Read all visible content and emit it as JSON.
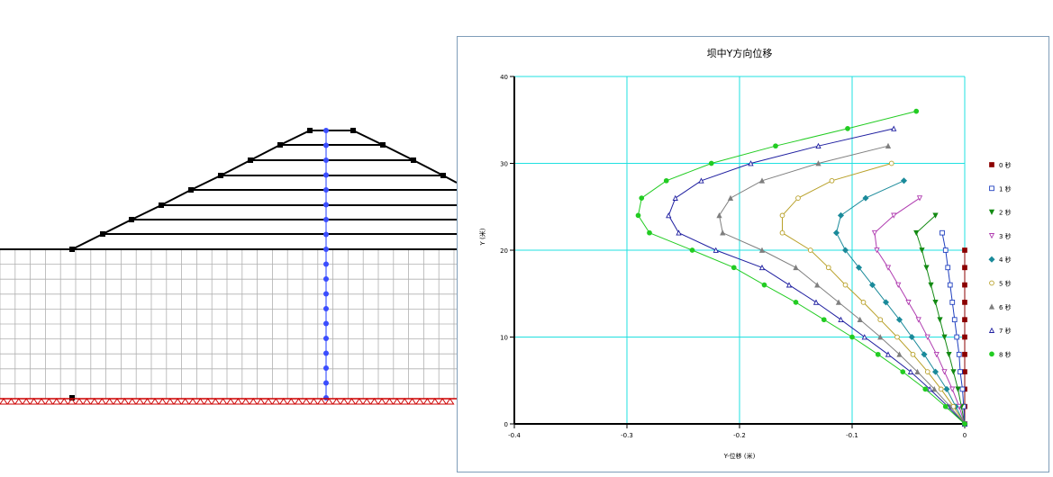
{
  "chart_data": {
    "type": "line",
    "title": "坝中Y方向位移",
    "xlabel": "Y-位移 (米)",
    "ylabel": "Y (米)",
    "xlim": [
      -0.4,
      0
    ],
    "ylim": [
      0,
      40
    ],
    "xticks": [
      -0.4,
      -0.3,
      -0.2,
      -0.1,
      0
    ],
    "xtick_labels": [
      "-0.4",
      "-0.3",
      "-0.2",
      "-0.1",
      "0"
    ],
    "yticks": [
      0,
      10,
      20,
      30,
      40
    ],
    "ytick_labels": [
      "0",
      "10",
      "20",
      "30",
      "40"
    ],
    "grid": true,
    "legend_position": "right",
    "series": [
      {
        "name": "0 秒",
        "color": "#8b0000",
        "marker": "square-filled",
        "points": [
          [
            0,
            0
          ],
          [
            0,
            2
          ],
          [
            0,
            4
          ],
          [
            0,
            6
          ],
          [
            0,
            8
          ],
          [
            0,
            10
          ],
          [
            0,
            12
          ],
          [
            0,
            14
          ],
          [
            0,
            16
          ],
          [
            0,
            18
          ],
          [
            0,
            20
          ]
        ]
      },
      {
        "name": "1 秒",
        "color": "#1f3fbf",
        "marker": "square-open",
        "points": [
          [
            0,
            0
          ],
          [
            -0.001,
            2
          ],
          [
            -0.002,
            4
          ],
          [
            -0.004,
            6
          ],
          [
            -0.005,
            8
          ],
          [
            -0.007,
            10
          ],
          [
            -0.009,
            12
          ],
          [
            -0.011,
            14
          ],
          [
            -0.013,
            16
          ],
          [
            -0.015,
            18
          ],
          [
            -0.017,
            20
          ],
          [
            -0.02,
            22
          ]
        ]
      },
      {
        "name": "2 秒",
        "color": "#138a13",
        "marker": "triangle-down-filled",
        "points": [
          [
            0,
            0
          ],
          [
            -0.003,
            2
          ],
          [
            -0.006,
            4
          ],
          [
            -0.01,
            6
          ],
          [
            -0.014,
            8
          ],
          [
            -0.018,
            10
          ],
          [
            -0.022,
            12
          ],
          [
            -0.026,
            14
          ],
          [
            -0.03,
            16
          ],
          [
            -0.034,
            18
          ],
          [
            -0.038,
            20
          ],
          [
            -0.043,
            22
          ],
          [
            -0.026,
            24
          ]
        ]
      },
      {
        "name": "3 秒",
        "color": "#b03cb0",
        "marker": "triangle-down-open",
        "points": [
          [
            0,
            0
          ],
          [
            -0.005,
            2
          ],
          [
            -0.011,
            4
          ],
          [
            -0.018,
            6
          ],
          [
            -0.025,
            8
          ],
          [
            -0.033,
            10
          ],
          [
            -0.041,
            12
          ],
          [
            -0.05,
            14
          ],
          [
            -0.059,
            16
          ],
          [
            -0.068,
            18
          ],
          [
            -0.078,
            20
          ],
          [
            -0.08,
            22
          ],
          [
            -0.063,
            24
          ],
          [
            -0.04,
            26
          ]
        ]
      },
      {
        "name": "4 秒",
        "color": "#1a8a9a",
        "marker": "diamond-filled",
        "points": [
          [
            0,
            0
          ],
          [
            -0.008,
            2
          ],
          [
            -0.016,
            4
          ],
          [
            -0.026,
            6
          ],
          [
            -0.036,
            8
          ],
          [
            -0.047,
            10
          ],
          [
            -0.058,
            12
          ],
          [
            -0.07,
            14
          ],
          [
            -0.082,
            16
          ],
          [
            -0.094,
            18
          ],
          [
            -0.106,
            20
          ],
          [
            -0.114,
            22
          ],
          [
            -0.11,
            24
          ],
          [
            -0.088,
            26
          ],
          [
            -0.054,
            28
          ]
        ]
      },
      {
        "name": "5 秒",
        "color": "#b8a028",
        "marker": "circle-open",
        "points": [
          [
            0,
            0
          ],
          [
            -0.01,
            2
          ],
          [
            -0.021,
            4
          ],
          [
            -0.033,
            6
          ],
          [
            -0.046,
            8
          ],
          [
            -0.06,
            10
          ],
          [
            -0.075,
            12
          ],
          [
            -0.09,
            14
          ],
          [
            -0.106,
            16
          ],
          [
            -0.121,
            18
          ],
          [
            -0.137,
            20
          ],
          [
            -0.162,
            22
          ],
          [
            -0.162,
            24
          ],
          [
            -0.148,
            26
          ],
          [
            -0.118,
            28
          ],
          [
            -0.065,
            30
          ]
        ]
      },
      {
        "name": "6 秒",
        "color": "#7f7f7f",
        "marker": "triangle-up-filled",
        "points": [
          [
            0,
            0
          ],
          [
            -0.013,
            2
          ],
          [
            -0.027,
            4
          ],
          [
            -0.042,
            6
          ],
          [
            -0.058,
            8
          ],
          [
            -0.075,
            10
          ],
          [
            -0.093,
            12
          ],
          [
            -0.112,
            14
          ],
          [
            -0.131,
            16
          ],
          [
            -0.15,
            18
          ],
          [
            -0.18,
            20
          ],
          [
            -0.215,
            22
          ],
          [
            -0.218,
            24
          ],
          [
            -0.208,
            26
          ],
          [
            -0.18,
            28
          ],
          [
            -0.13,
            30
          ],
          [
            -0.068,
            32
          ]
        ]
      },
      {
        "name": "7 秒",
        "color": "#1f1fa0",
        "marker": "triangle-up-open",
        "points": [
          [
            0,
            0
          ],
          [
            -0.015,
            2
          ],
          [
            -0.031,
            4
          ],
          [
            -0.048,
            6
          ],
          [
            -0.068,
            8
          ],
          [
            -0.089,
            10
          ],
          [
            -0.11,
            12
          ],
          [
            -0.132,
            14
          ],
          [
            -0.156,
            16
          ],
          [
            -0.18,
            18
          ],
          [
            -0.221,
            20
          ],
          [
            -0.254,
            22
          ],
          [
            -0.263,
            24
          ],
          [
            -0.257,
            26
          ],
          [
            -0.234,
            28
          ],
          [
            -0.19,
            30
          ],
          [
            -0.13,
            32
          ],
          [
            -0.063,
            34
          ]
        ]
      },
      {
        "name": "8 秒",
        "color": "#22cc22",
        "marker": "circle-filled",
        "points": [
          [
            0,
            0
          ],
          [
            -0.017,
            2
          ],
          [
            -0.035,
            4
          ],
          [
            -0.055,
            6
          ],
          [
            -0.077,
            8
          ],
          [
            -0.1,
            10
          ],
          [
            -0.125,
            12
          ],
          [
            -0.15,
            14
          ],
          [
            -0.178,
            16
          ],
          [
            -0.205,
            18
          ],
          [
            -0.242,
            20
          ],
          [
            -0.28,
            22
          ],
          [
            -0.29,
            24
          ],
          [
            -0.287,
            26
          ],
          [
            -0.265,
            28
          ],
          [
            -0.225,
            30
          ],
          [
            -0.168,
            32
          ],
          [
            -0.104,
            34
          ],
          [
            -0.043,
            36
          ]
        ]
      }
    ]
  }
}
